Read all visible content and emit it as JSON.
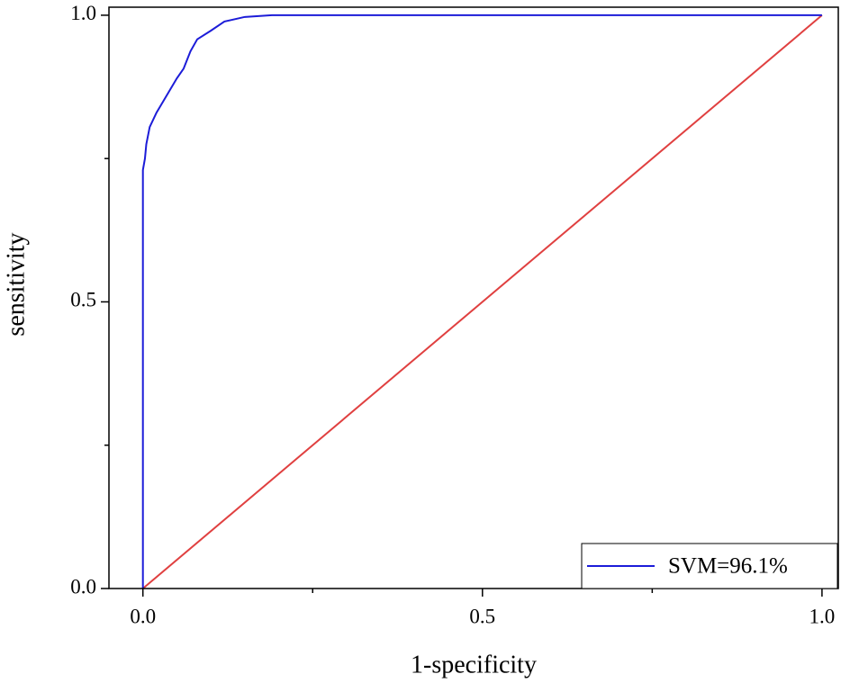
{
  "chart_data": {
    "type": "line",
    "xlabel": "1-specificity",
    "ylabel": "sensitivity",
    "xlim": [
      -0.05,
      1.024
    ],
    "ylim": [
      0,
      1.014
    ],
    "xticks": [
      {
        "value": 0,
        "label": "0.0"
      },
      {
        "value": 0.5,
        "label": "0.5"
      },
      {
        "value": 1,
        "label": "1.0"
      }
    ],
    "yticks": [
      {
        "value": 0,
        "label": "0.0"
      },
      {
        "value": 0.5,
        "label": "0.5"
      },
      {
        "value": 1,
        "label": "1.0"
      }
    ],
    "minor_xticks": [
      0.25,
      0.75
    ],
    "minor_yticks": [
      0.25,
      0.75
    ],
    "legend": "lower right",
    "series": [
      {
        "name": "SVM=96.1%",
        "color": "#1c1cd8",
        "x": [
          0,
          0,
          0.003,
          0.005,
          0.01,
          0.02,
          0.03,
          0.04,
          0.05,
          0.06,
          0.07,
          0.08,
          0.1,
          0.12,
          0.15,
          0.19,
          1
        ],
        "values": [
          0,
          0.73,
          0.75,
          0.775,
          0.805,
          0.83,
          0.85,
          0.87,
          0.89,
          0.907,
          0.937,
          0.958,
          0.973,
          0.989,
          0.997,
          1,
          1
        ]
      },
      {
        "color": "#e04040",
        "x": [
          0,
          1
        ],
        "values": [
          0,
          1
        ]
      }
    ]
  }
}
